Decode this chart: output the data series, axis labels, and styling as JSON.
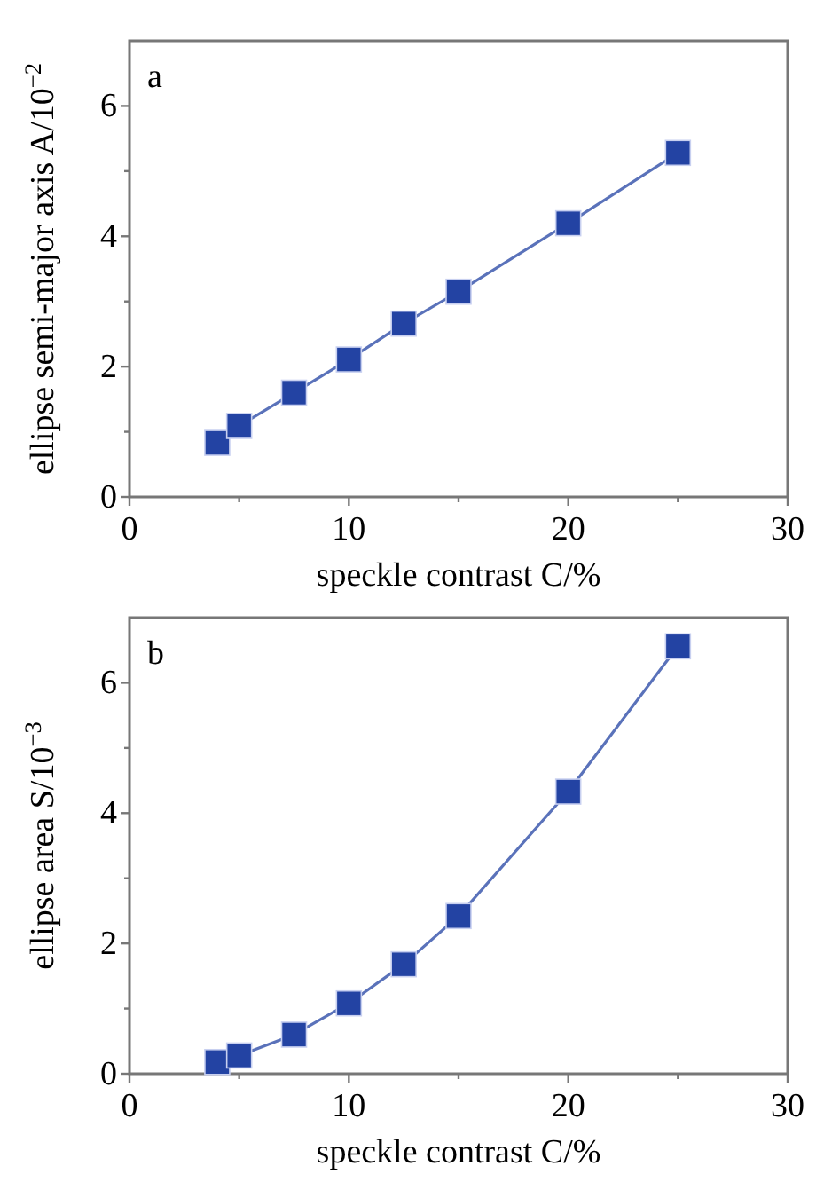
{
  "chart_data": [
    {
      "type": "line",
      "annotations": [
        "a"
      ],
      "xlabel": "speckle contrast C/%",
      "ylabel": "ellipse semi-major axis A/10$^{−2}$",
      "x": [
        4,
        5,
        7.5,
        10,
        12.5,
        15,
        20,
        25
      ],
      "series": [
        {
          "color": "#2343a3",
          "values": [
            0.83,
            1.09,
            1.6,
            2.11,
            2.66,
            3.15,
            4.2,
            5.28
          ]
        }
      ],
      "marker": "square",
      "xlim": [
        0,
        30
      ],
      "xticks": [
        0,
        {
          "value": 5,
          "label": null
        },
        10,
        {
          "value": 15,
          "label": null
        },
        20,
        {
          "value": 25,
          "label": null
        },
        30
      ],
      "ylim": [
        0,
        7
      ],
      "yticks": [
        0,
        {
          "value": 1,
          "label": null
        },
        2,
        {
          "value": 3,
          "label": null
        },
        4,
        {
          "value": 5,
          "label": null
        },
        6
      ]
    },
    {
      "type": "line",
      "annotations": [
        "b"
      ],
      "xlabel": "speckle contrast C/%",
      "ylabel": "ellipse area S/10$^{−3}$",
      "x": [
        4,
        5,
        7.5,
        10,
        12.5,
        15,
        20,
        25
      ],
      "series": [
        {
          "color": "#2343a3",
          "values": [
            0.18,
            0.28,
            0.6,
            1.08,
            1.68,
            2.42,
            4.33,
            6.56
          ]
        }
      ],
      "marker": "square",
      "xlim": [
        0,
        30
      ],
      "xticks": [
        0,
        {
          "value": 5,
          "label": null
        },
        10,
        {
          "value": 15,
          "label": null
        },
        20,
        {
          "value": 25,
          "label": null
        },
        30
      ],
      "ylim": [
        0,
        7
      ],
      "yticks": [
        0,
        {
          "value": 1,
          "label": null
        },
        2,
        {
          "value": 3,
          "label": null
        },
        4,
        {
          "value": 5,
          "label": null
        },
        6
      ]
    }
  ]
}
